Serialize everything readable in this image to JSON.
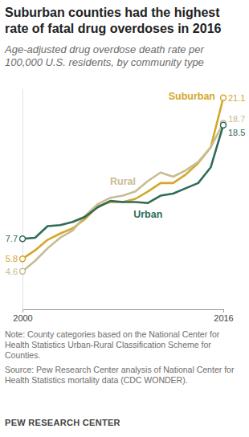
{
  "chart_data": {
    "type": "line",
    "title": "Suburban counties had the highest rate of fatal drug overdoses in 2016",
    "subtitle": "Age-adjusted drug overdose death rate per 100,000 U.S. residents, by community type",
    "x": [
      2000,
      2001,
      2002,
      2003,
      2004,
      2005,
      2006,
      2007,
      2008,
      2009,
      2010,
      2011,
      2012,
      2013,
      2014,
      2015,
      2016
    ],
    "xlim": [
      2000,
      2016
    ],
    "xticks": [
      2000,
      2016
    ],
    "ylim": [
      1,
      22
    ],
    "yticks": [],
    "tick_labels": "x",
    "grid": false,
    "series": [
      {
        "name": "Suburban",
        "color": "#d4a72c",
        "marker": "circle",
        "line_style": "solid",
        "values": [
          5.8,
          6.6,
          7.6,
          8.2,
          8.7,
          9.6,
          10.8,
          11.2,
          11.2,
          11.5,
          12.2,
          13.0,
          13.0,
          13.8,
          14.9,
          16.4,
          21.1
        ]
      },
      {
        "name": "Rural",
        "color": "#c9bb93",
        "marker": "circle",
        "line_style": "solid",
        "values": [
          4.6,
          5.6,
          6.8,
          7.8,
          8.5,
          9.9,
          11.0,
          11.6,
          11.8,
          12.2,
          13.2,
          14.0,
          13.6,
          14.2,
          15.0,
          16.4,
          18.7
        ]
      },
      {
        "name": "Urban",
        "color": "#2f6b57",
        "marker": "circle",
        "line_style": "solid",
        "values": [
          7.7,
          7.8,
          8.9,
          9.0,
          9.3,
          9.8,
          10.7,
          11.3,
          11.2,
          11.2,
          11.1,
          11.8,
          12.0,
          12.5,
          13.0,
          14.5,
          18.5
        ]
      }
    ],
    "note": "Note: County categories based on the National Center for Health Statistics Urban-Rural Classification Scheme for Counties.",
    "source": "Source: Pew Research Center analysis of National Center for Health Statistics mortality data (CDC WONDER).",
    "credit": "PEW RESEARCH CENTER"
  }
}
